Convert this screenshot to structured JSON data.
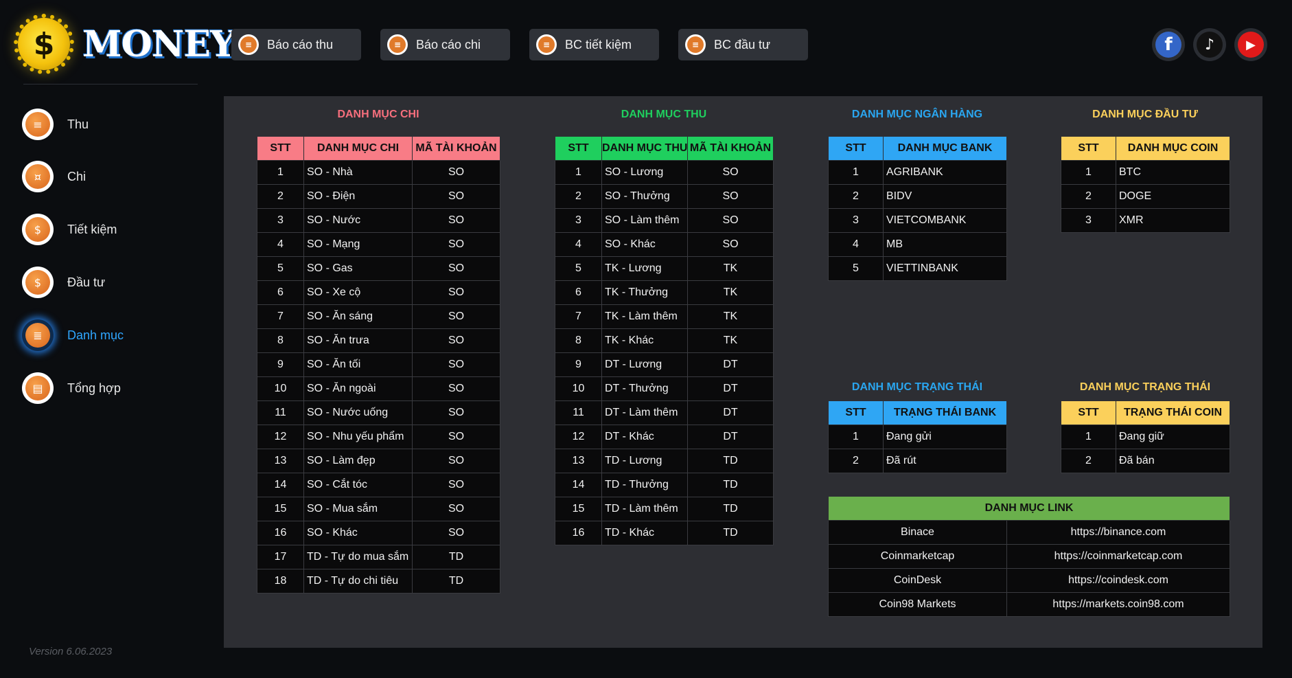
{
  "logo": {
    "symbol": "$",
    "word": "MONEY"
  },
  "version": "Version 6.06.2023",
  "sidebar": {
    "items": [
      {
        "label": "Thu",
        "icon": "money-doc-icon",
        "glyph": "≡",
        "active": false
      },
      {
        "label": "Chi",
        "icon": "bill-icon",
        "glyph": "¤",
        "active": false
      },
      {
        "label": "Tiết kiệm",
        "icon": "piggy-bank-icon",
        "glyph": "$",
        "active": false
      },
      {
        "label": "Đầu tư",
        "icon": "invest-icon",
        "glyph": "$",
        "active": false
      },
      {
        "label": "Danh mục",
        "icon": "clipboard-icon",
        "glyph": "≣",
        "active": true
      },
      {
        "label": "Tổng hợp",
        "icon": "dashboard-icon",
        "glyph": "▤",
        "active": false
      }
    ]
  },
  "top_buttons": [
    {
      "label": "Báo cáo thu",
      "icon": "report-icon"
    },
    {
      "label": "Báo cáo chi",
      "icon": "report-icon"
    },
    {
      "label": "BC tiết kiệm",
      "icon": "report-icon"
    },
    {
      "label": "BC đầu tư",
      "icon": "report-icon"
    }
  ],
  "social": {
    "facebook": "f",
    "tiktok": "♪",
    "youtube": "▶"
  },
  "danh_muc_chi": {
    "title": "DANH MỤC CHI",
    "headers": [
      "STT",
      "DANH MỤC CHI",
      "MÃ TÀI KHOẢN"
    ],
    "rows": [
      [
        "1",
        "SO - Nhà",
        "SO"
      ],
      [
        "2",
        "SO - Điện",
        "SO"
      ],
      [
        "3",
        "SO - Nước",
        "SO"
      ],
      [
        "4",
        "SO - Mạng",
        "SO"
      ],
      [
        "5",
        "SO - Gas",
        "SO"
      ],
      [
        "6",
        "SO - Xe cộ",
        "SO"
      ],
      [
        "7",
        "SO - Ăn sáng",
        "SO"
      ],
      [
        "8",
        "SO - Ăn trưa",
        "SO"
      ],
      [
        "9",
        "SO - Ăn tối",
        "SO"
      ],
      [
        "10",
        "SO - Ăn ngoài",
        "SO"
      ],
      [
        "11",
        "SO - Nước uống",
        "SO"
      ],
      [
        "12",
        "SO - Nhu yếu phẩm",
        "SO"
      ],
      [
        "13",
        "SO - Làm đẹp",
        "SO"
      ],
      [
        "14",
        "SO - Cắt tóc",
        "SO"
      ],
      [
        "15",
        "SO - Mua sắm",
        "SO"
      ],
      [
        "16",
        "SO - Khác",
        "SO"
      ],
      [
        "17",
        "TD - Tự do mua sắm",
        "TD"
      ],
      [
        "18",
        "TD - Tự do chi tiêu",
        "TD"
      ]
    ]
  },
  "danh_muc_thu": {
    "title": "DANH MỤC THU",
    "headers": [
      "STT",
      "DANH MỤC THU",
      "MÃ TÀI KHOẢN"
    ],
    "rows": [
      [
        "1",
        "SO - Lương",
        "SO"
      ],
      [
        "2",
        "SO - Thưởng",
        "SO"
      ],
      [
        "3",
        "SO - Làm thêm",
        "SO"
      ],
      [
        "4",
        "SO - Khác",
        "SO"
      ],
      [
        "5",
        "TK - Lương",
        "TK"
      ],
      [
        "6",
        "TK - Thưởng",
        "TK"
      ],
      [
        "7",
        "TK - Làm thêm",
        "TK"
      ],
      [
        "8",
        "TK - Khác",
        "TK"
      ],
      [
        "9",
        "DT - Lương",
        "DT"
      ],
      [
        "10",
        "DT - Thưởng",
        "DT"
      ],
      [
        "11",
        "DT - Làm thêm",
        "DT"
      ],
      [
        "12",
        "DT - Khác",
        "DT"
      ],
      [
        "13",
        "TD - Lương",
        "TD"
      ],
      [
        "14",
        "TD - Thưởng",
        "TD"
      ],
      [
        "15",
        "TD - Làm thêm",
        "TD"
      ],
      [
        "16",
        "TD - Khác",
        "TD"
      ]
    ]
  },
  "danh_muc_ngan_hang": {
    "title": "DANH MỤC NGÂN HÀNG",
    "headers": [
      "STT",
      "DANH MỤC BANK"
    ],
    "rows": [
      [
        "1",
        "AGRIBANK"
      ],
      [
        "2",
        "BIDV"
      ],
      [
        "3",
        "VIETCOMBANK"
      ],
      [
        "4",
        "MB"
      ],
      [
        "5",
        "VIETTINBANK"
      ]
    ]
  },
  "danh_muc_dau_tu": {
    "title": "DANH MỤC ĐẦU TƯ",
    "headers": [
      "STT",
      "DANH MỤC COIN"
    ],
    "rows": [
      [
        "1",
        "BTC"
      ],
      [
        "2",
        "DOGE"
      ],
      [
        "3",
        "XMR"
      ]
    ]
  },
  "trang_thai_bank": {
    "title": "DANH MỤC TRẠNG THÁI",
    "headers": [
      "STT",
      "TRẠNG THÁI BANK"
    ],
    "rows": [
      [
        "1",
        "Đang gửi"
      ],
      [
        "2",
        "Đã rút"
      ]
    ]
  },
  "trang_thai_coin": {
    "title": "DANH MỤC TRẠNG THÁI",
    "headers": [
      "STT",
      "TRẠNG THÁI COIN"
    ],
    "rows": [
      [
        "1",
        "Đang giữ"
      ],
      [
        "2",
        "Đã bán"
      ]
    ]
  },
  "danh_muc_link": {
    "title": "DANH MỤC LINK",
    "rows": [
      [
        "Binace",
        "https://binance.com"
      ],
      [
        "Coinmarketcap",
        "https://coinmarketcap.com"
      ],
      [
        "CoinDesk",
        "https://coindesk.com"
      ],
      [
        "Coin98 Markets",
        "https://markets.coin98.com"
      ]
    ]
  },
  "colors": {
    "chi": "#f87c86",
    "thu": "#1fcf5e",
    "bank": "#2fa6f4",
    "coin": "#fbd05b",
    "link": "#6ab04c",
    "title_chi": "#f76f7d",
    "title_thu": "#1fcf5e",
    "title_bank": "#2aa6f0",
    "title_coin": "#fbd05b"
  }
}
